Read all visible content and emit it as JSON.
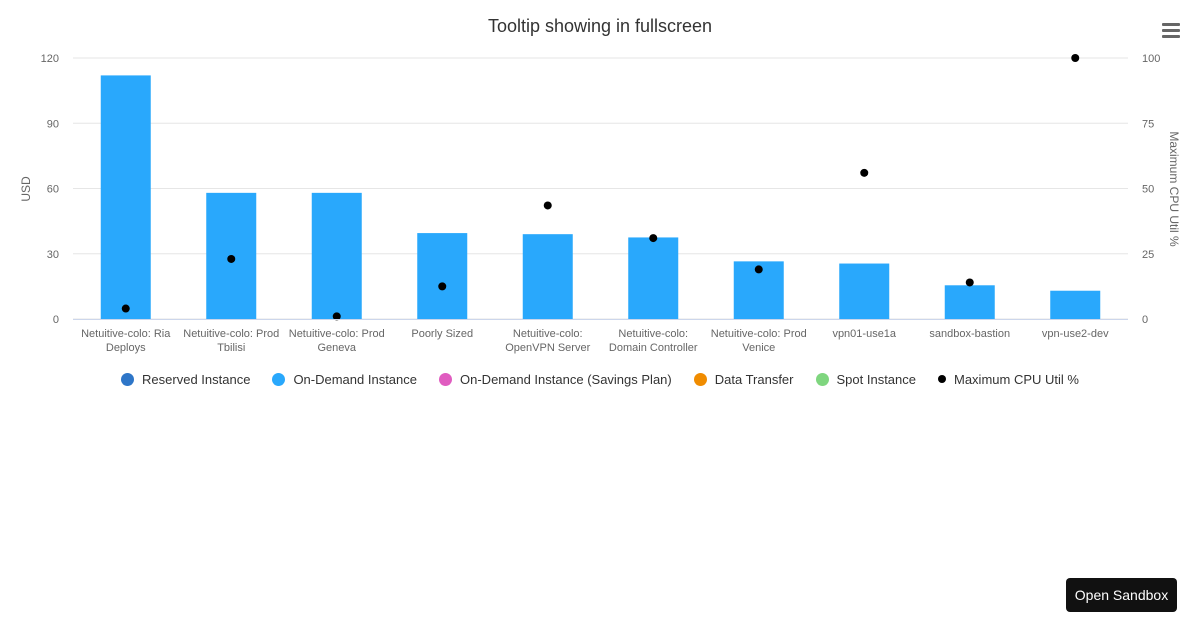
{
  "menu": {
    "icon": "hamburger-menu-icon"
  },
  "sandbox": {
    "label": "Open Sandbox"
  },
  "colors": {
    "reserved": "#2e76c8",
    "on_demand": "#29a8fc",
    "savings_plan": "#e05cc0",
    "data_transfer": "#f08c00",
    "spot": "#7fd67f",
    "cpu": "#000000"
  },
  "legend": [
    {
      "label": "Reserved Instance",
      "color": "#2e76c8",
      "marker": "circle"
    },
    {
      "label": "On-Demand Instance",
      "color": "#29a8fc",
      "marker": "circle"
    },
    {
      "label": "On-Demand Instance (Savings Plan)",
      "color": "#e05cc0",
      "marker": "circle"
    },
    {
      "label": "Data Transfer",
      "color": "#f08c00",
      "marker": "circle"
    },
    {
      "label": "Spot Instance",
      "color": "#7fd67f",
      "marker": "circle"
    },
    {
      "label": "Maximum CPU Util %",
      "color": "#000000",
      "marker": "dot"
    }
  ],
  "chart_data": {
    "type": "bar",
    "title": "Tooltip showing in fullscreen",
    "ylabel": "USD",
    "y2label": "Maximum CPU Util %",
    "ylim": [
      0,
      120
    ],
    "y2lim": [
      0,
      100
    ],
    "yticks": [
      "0",
      "30",
      "60",
      "90",
      "120"
    ],
    "y2ticks": [
      "0",
      "25",
      "50",
      "75",
      "100"
    ],
    "grid": true,
    "legend_position": "bottom",
    "categories": [
      [
        "Netuitive-colo: Ria",
        "Deploys"
      ],
      [
        "Netuitive-colo: Prod",
        "Tbilisi"
      ],
      [
        "Netuitive-colo: Prod",
        "Geneva"
      ],
      [
        "Poorly Sized"
      ],
      [
        "Netuitive-colo:",
        "OpenVPN Server"
      ],
      [
        "Netuitive-colo:",
        "Domain Controller"
      ],
      [
        "Netuitive-colo: Prod",
        "Venice"
      ],
      [
        "vpn01-use1a"
      ],
      [
        "sandbox-bastion"
      ],
      [
        "vpn-use2-dev"
      ]
    ],
    "series": [
      {
        "name": "Reserved Instance",
        "type": "bar",
        "values": [
          0,
          0,
          0,
          0,
          0,
          0,
          0,
          0,
          0,
          0
        ]
      },
      {
        "name": "On-Demand Instance",
        "type": "bar",
        "values": [
          112,
          58,
          58,
          39.5,
          39,
          37.5,
          26.5,
          25.5,
          15.5,
          13
        ]
      },
      {
        "name": "On-Demand Instance (Savings Plan)",
        "type": "bar",
        "values": [
          0,
          0,
          0,
          0,
          0,
          0,
          0,
          0,
          0,
          0
        ]
      },
      {
        "name": "Data Transfer",
        "type": "bar",
        "values": [
          0,
          0,
          0,
          0,
          0,
          0,
          0,
          0,
          0,
          0
        ]
      },
      {
        "name": "Spot Instance",
        "type": "bar",
        "values": [
          0,
          0,
          0,
          0,
          0,
          0,
          0,
          0,
          0,
          0
        ]
      },
      {
        "name": "Maximum CPU Util %",
        "type": "scatter",
        "axis": "right",
        "values": [
          4,
          23,
          1,
          12.5,
          43.5,
          31,
          19,
          56,
          14,
          100
        ]
      }
    ]
  }
}
